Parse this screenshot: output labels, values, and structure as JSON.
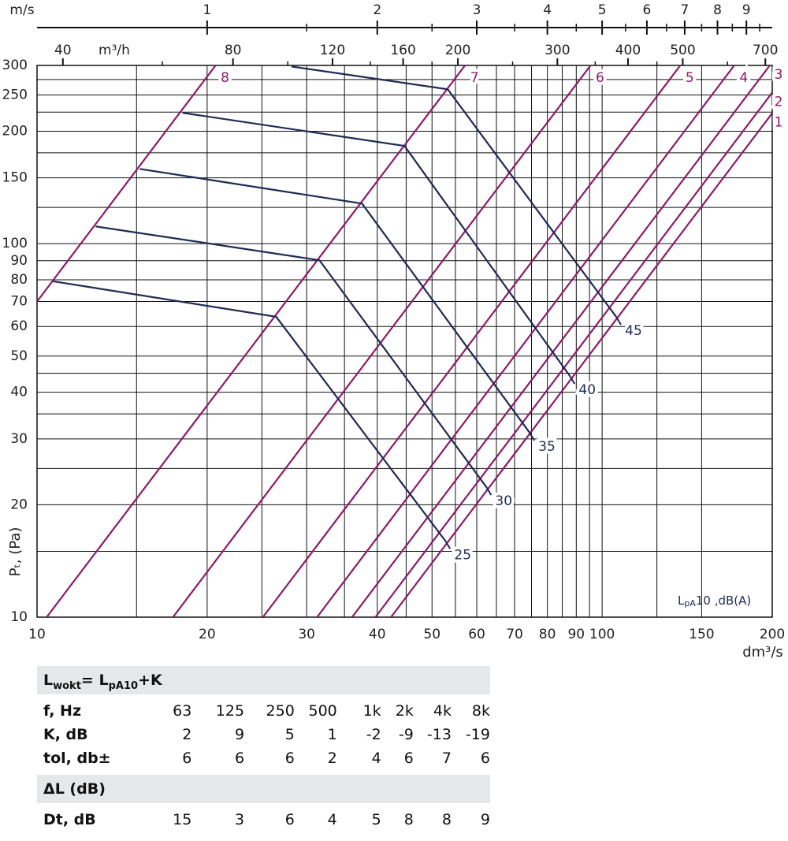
{
  "chart_data": {
    "type": "line",
    "xscale": "log",
    "yscale": "log",
    "grid": true,
    "xlim": [
      10,
      200
    ],
    "ylim": [
      10,
      300
    ],
    "xticks": [
      10,
      20,
      30,
      40,
      50,
      60,
      70,
      80,
      90,
      100,
      150,
      200
    ],
    "xminorticks": [
      15,
      25,
      35,
      45,
      55,
      65,
      75,
      85,
      95,
      125
    ],
    "yticks": [
      10,
      20,
      30,
      40,
      50,
      60,
      70,
      80,
      90,
      100,
      150,
      200,
      250,
      300
    ],
    "yminorticks": [
      15,
      25,
      35,
      45,
      125,
      175,
      225,
      275
    ],
    "xlabel": "dm³/s",
    "ylabel": "Pₜ, (Pa)",
    "annotation": {
      "base": "L",
      "sub": "pA",
      "rest": "10 ,dB(A)"
    },
    "top_axes": [
      {
        "label": "m/s",
        "lim": [
          0.5,
          10
        ],
        "ticks": [
          1,
          2,
          3,
          4,
          5,
          6,
          7,
          8,
          9
        ],
        "minorticks": [
          1.5,
          2.5,
          3.5,
          4.5,
          5.5,
          6.5,
          7.5,
          8.5,
          9.5
        ]
      },
      {
        "label": "m³/h",
        "lim": [
          36,
          720
        ],
        "ticks": [
          40,
          80,
          120,
          160,
          200,
          300,
          400,
          500,
          700
        ],
        "minorticks": [
          60,
          100,
          140,
          180,
          250,
          350,
          450,
          600
        ]
      }
    ],
    "series": [
      {
        "name": "8",
        "color": "#8c1a6a",
        "x": [
          10,
          20.7
        ],
        "values": [
          70,
          300
        ]
      },
      {
        "name": "7",
        "color": "#8c1a6a",
        "x": [
          10.4,
          57.2
        ],
        "values": [
          10,
          300
        ]
      },
      {
        "name": "6",
        "color": "#8c1a6a",
        "x": [
          17.4,
          95.4
        ],
        "values": [
          10,
          300
        ]
      },
      {
        "name": "5",
        "color": "#8c1a6a",
        "x": [
          25.1,
          137.5
        ],
        "values": [
          10,
          300
        ]
      },
      {
        "name": "4",
        "color": "#8c1a6a",
        "x": [
          31.3,
          171.3
        ],
        "values": [
          10,
          300
        ]
      },
      {
        "name": "3",
        "color": "#8c1a6a",
        "x": [
          36.1,
          198
        ],
        "values": [
          10,
          300
        ]
      },
      {
        "name": "2",
        "color": "#8c1a6a",
        "x": [
          39.7,
          200
        ],
        "values": [
          10,
          253.8
        ]
      },
      {
        "name": "1",
        "color": "#8c1a6a",
        "x": [
          42.3,
          200
        ],
        "values": [
          10,
          223.6
        ]
      },
      {
        "name": "25",
        "color": "#1f2a55",
        "x": [
          10.66,
          26.5,
          52.8
        ],
        "values": [
          79.3,
          63.7,
          16.0
        ]
      },
      {
        "name": "30",
        "color": "#1f2a55",
        "x": [
          12.7,
          31.6,
          62.4
        ],
        "values": [
          111.2,
          90.3,
          22.3
        ]
      },
      {
        "name": "35",
        "color": "#1f2a55",
        "x": [
          15.2,
          37.6,
          74.4
        ],
        "values": [
          158.5,
          128,
          31.2
        ]
      },
      {
        "name": "40",
        "color": "#1f2a55",
        "x": [
          18.1,
          44.7,
          87.7
        ],
        "values": [
          224,
          182.6,
          44.2
        ]
      },
      {
        "name": "45",
        "color": "#1f2a55",
        "x": [
          28.2,
          53.3,
          105.9
        ],
        "values": [
          298,
          259,
          63.7
        ]
      }
    ]
  },
  "table": {
    "formula": [
      "L",
      "wokt",
      "= L",
      "pA10",
      "+K"
    ],
    "rows": [
      [
        "f, Hz",
        63,
        125,
        250,
        500,
        "1k",
        "2k",
        "4k",
        "8k"
      ],
      [
        "K, dB",
        2,
        9,
        5,
        1,
        -2,
        -9,
        -13,
        -19
      ],
      [
        "tol, db±",
        6,
        6,
        6,
        2,
        4,
        6,
        7,
        6
      ]
    ],
    "section": "ΔL (dB)",
    "rows2": [
      [
        "Dt, dB",
        15,
        3,
        6,
        4,
        5,
        8,
        8,
        9
      ]
    ]
  }
}
